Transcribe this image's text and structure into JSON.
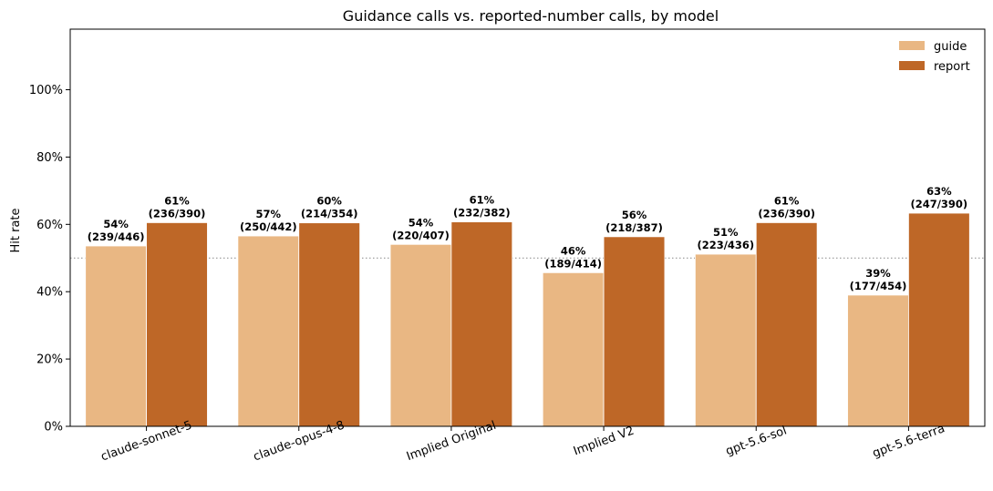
{
  "chart_data": {
    "type": "bar",
    "title": "Guidance calls vs. reported-number calls, by model",
    "xlabel": "",
    "ylabel": "Hit rate",
    "ylim": [
      0,
      1.18
    ],
    "yticks": [
      0,
      0.2,
      0.4,
      0.6,
      0.8,
      1.0
    ],
    "ytick_labels": [
      "0%",
      "20%",
      "40%",
      "60%",
      "80%",
      "100%"
    ],
    "reference_line": 0.5,
    "grid": false,
    "legend_position": "top-right",
    "categories": [
      "claude-sonnet-5",
      "claude-opus-4-8",
      "Implied Original",
      "Implied V2",
      "gpt-5.6-sol",
      "gpt-5.6-terra"
    ],
    "series": [
      {
        "name": "guide",
        "color": "#E9B783",
        "values": [
          0.5359,
          0.5656,
          0.5405,
          0.4565,
          0.5115,
          0.3899
        ],
        "labels": [
          "54%",
          "57%",
          "54%",
          "46%",
          "51%",
          "39%"
        ],
        "counts": [
          "(239/446)",
          "(250/442)",
          "(220/407)",
          "(189/414)",
          "(223/436)",
          "(177/454)"
        ]
      },
      {
        "name": "report",
        "color": "#BE6727",
        "values": [
          0.6051,
          0.6045,
          0.6073,
          0.5633,
          0.6051,
          0.6333
        ],
        "labels": [
          "61%",
          "60%",
          "61%",
          "56%",
          "61%",
          "63%"
        ],
        "counts": [
          "(236/390)",
          "(214/354)",
          "(232/382)",
          "(218/387)",
          "(236/390)",
          "(247/390)"
        ]
      }
    ]
  }
}
